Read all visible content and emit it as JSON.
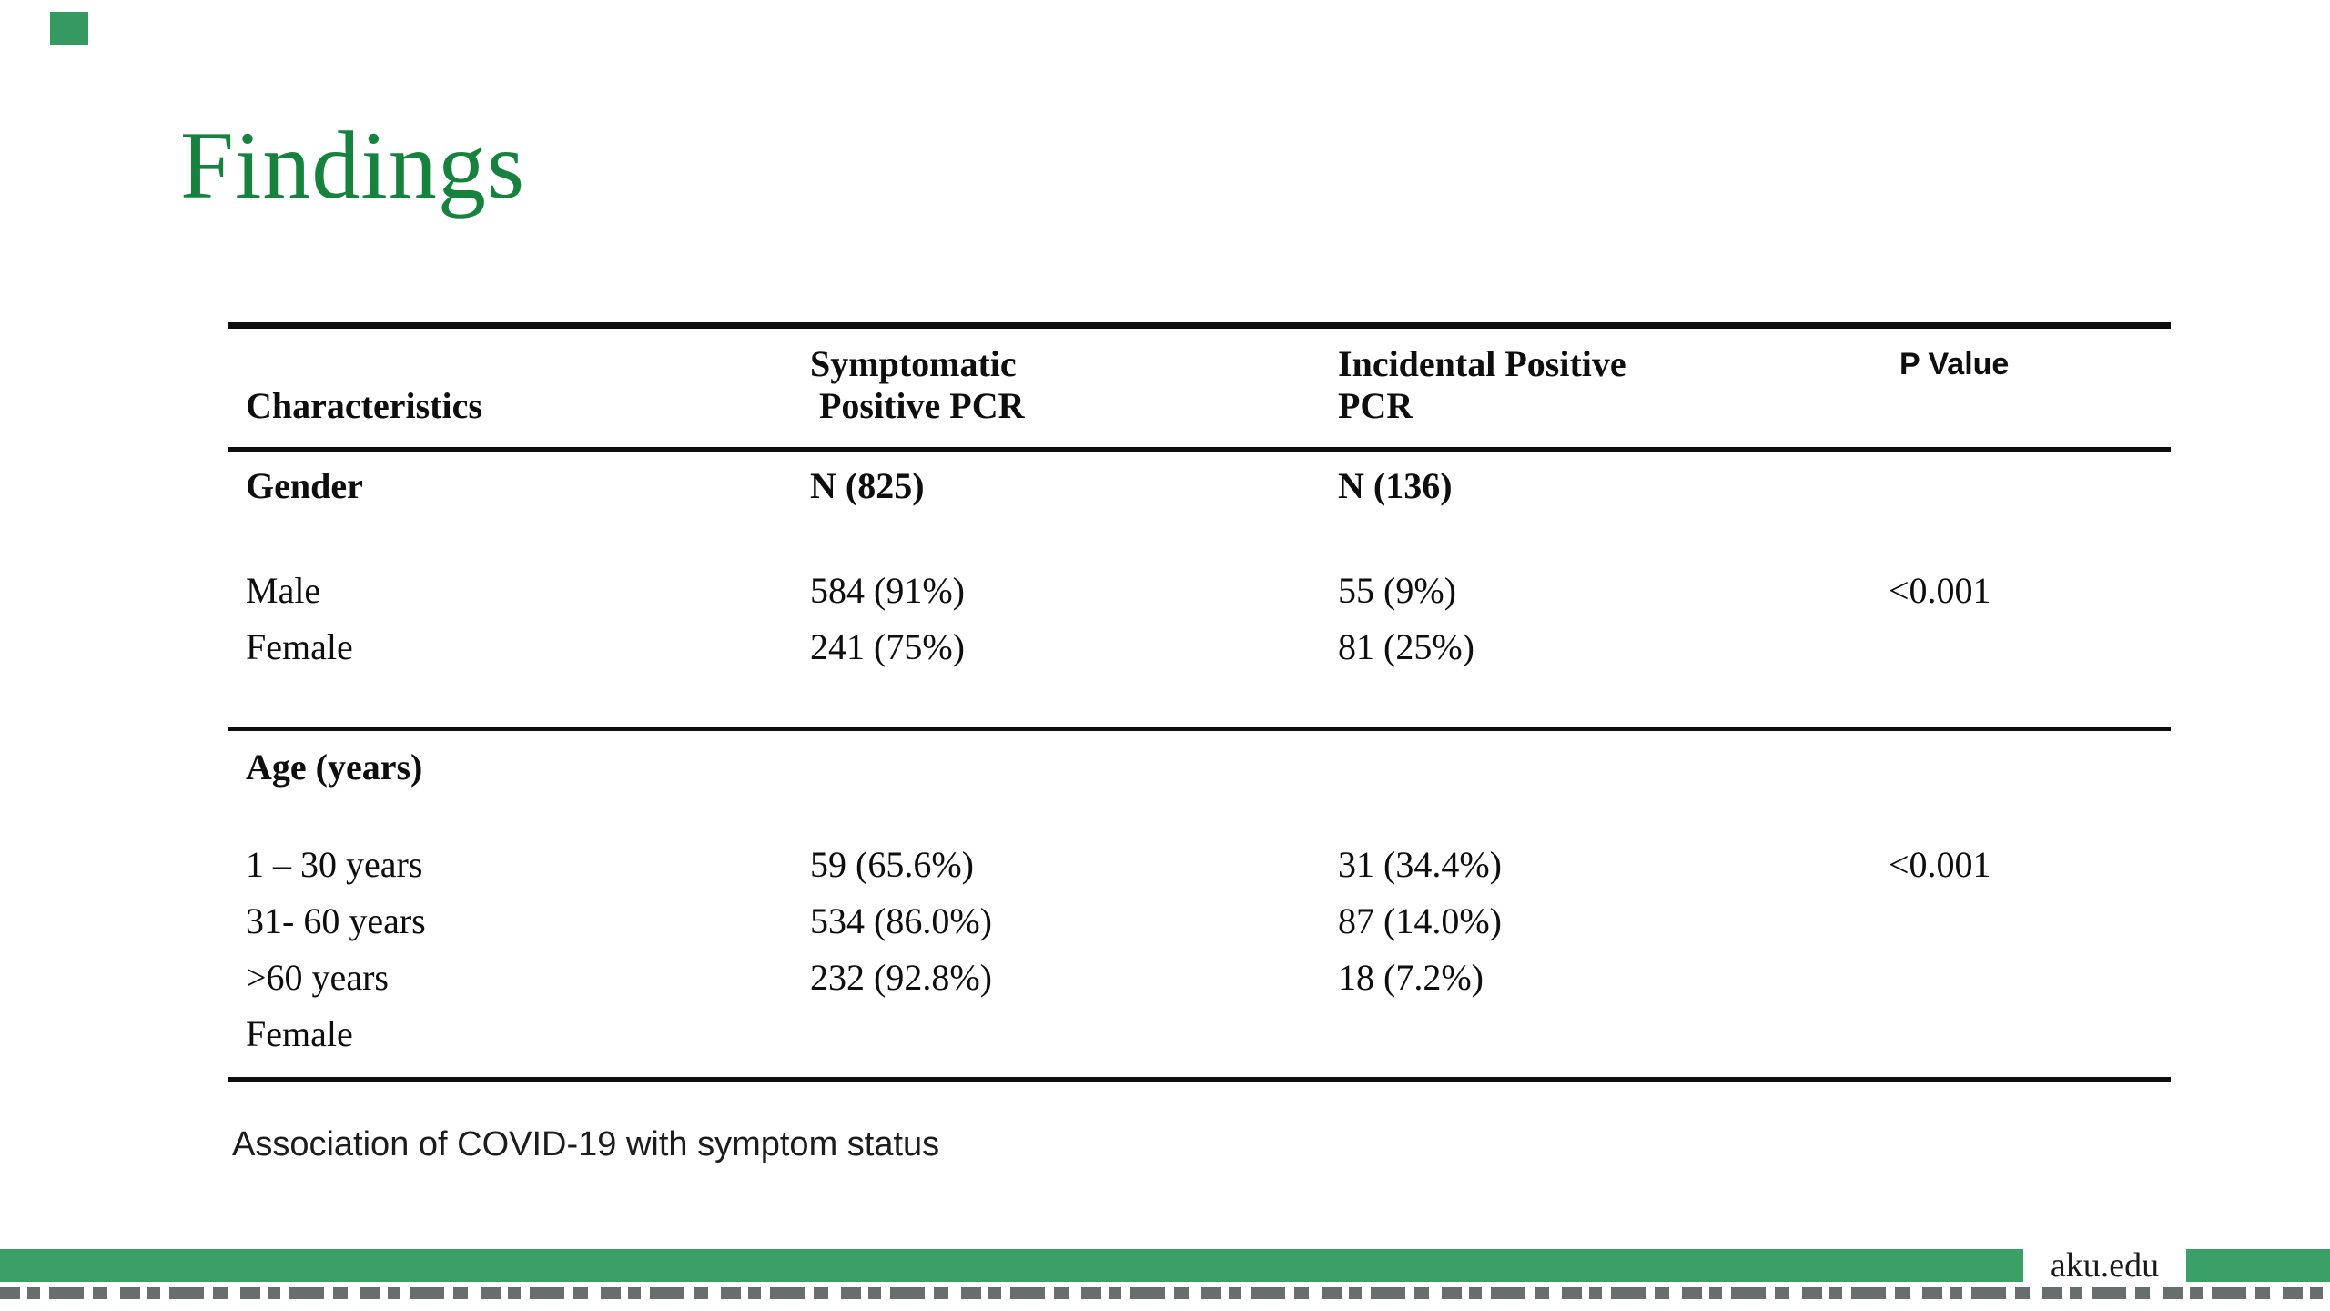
{
  "slide": {
    "title": "Findings",
    "caption": "Association of COVID-19 with symptom status",
    "footer_text": "aku.edu",
    "colors": {
      "title_green": "#16823E",
      "bar_green": "#3AA068",
      "corner_green": "#359962",
      "rule_black": "#0E0E0E"
    }
  },
  "table": {
    "header": {
      "characteristics": "Characteristics",
      "symptomatic_line1": "Symptomatic",
      "symptomatic_line2": "Positive PCR",
      "incidental_line1": "Incidental Positive",
      "incidental_line2": "PCR",
      "p_value": "P Value"
    },
    "gender": {
      "label": "Gender",
      "symptomatic_n": "N (825)",
      "incidental_n": "N (136)",
      "p_value": "<0.001",
      "rows": [
        {
          "name": "Male",
          "symptomatic": "584 (91%)",
          "incidental": "55 (9%)"
        },
        {
          "name": "Female",
          "symptomatic": "241 (75%)",
          "incidental": "81 (25%)"
        }
      ]
    },
    "age": {
      "label": "Age (years)",
      "p_value": "<0.001",
      "rows": [
        {
          "name": "1 – 30 years",
          "symptomatic": "59 (65.6%)",
          "incidental": "31 (34.4%)"
        },
        {
          "name": "31- 60 years",
          "symptomatic": "534 (86.0%)",
          "incidental": "87 (14.0%)"
        },
        {
          "name": ">60 years",
          "symptomatic": "232 (92.8%)",
          "incidental": "18 (7.2%)"
        },
        {
          "name": "Female",
          "symptomatic": "",
          "incidental": ""
        }
      ]
    }
  }
}
